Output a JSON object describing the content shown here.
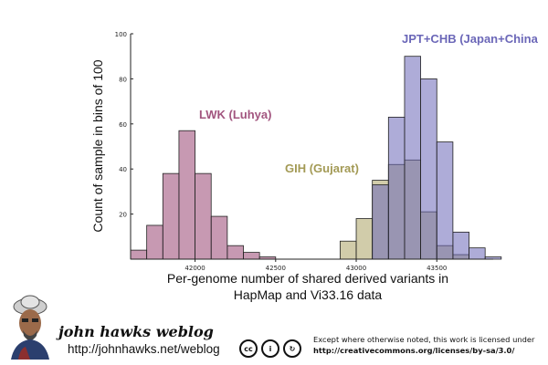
{
  "chart_data": {
    "type": "histogram",
    "xlabel_line1": "Per-genome number of shared derived variants in",
    "xlabel_line2": "HapMap and Vi33.16 data",
    "ylabel": "Count of sample in bins of 100",
    "xlim": [
      41600,
      43850
    ],
    "ylim": [
      0,
      100
    ],
    "bin_width": 100,
    "x_ticks": [
      42000,
      42500,
      43000,
      43500
    ],
    "y_ticks": [
      0,
      20,
      40,
      60,
      80,
      100
    ],
    "series": [
      {
        "name": "LWK (Luhya)",
        "color": "#a2557f",
        "opacity": 0.6,
        "bins": [
          {
            "start": 41600,
            "count": 4
          },
          {
            "start": 41700,
            "count": 15
          },
          {
            "start": 41800,
            "count": 38
          },
          {
            "start": 41900,
            "count": 57
          },
          {
            "start": 42000,
            "count": 38
          },
          {
            "start": 42100,
            "count": 19
          },
          {
            "start": 42200,
            "count": 6
          },
          {
            "start": 42300,
            "count": 3
          },
          {
            "start": 42400,
            "count": 1
          }
        ]
      },
      {
        "name": "GIH (Gujarat)",
        "color": "#a39a55",
        "opacity": 0.5,
        "bins": [
          {
            "start": 42900,
            "count": 8
          },
          {
            "start": 43000,
            "count": 18
          },
          {
            "start": 43100,
            "count": 35
          },
          {
            "start": 43200,
            "count": 42
          },
          {
            "start": 43300,
            "count": 44
          },
          {
            "start": 43400,
            "count": 21
          },
          {
            "start": 43500,
            "count": 6
          },
          {
            "start": 43600,
            "count": 2
          }
        ]
      },
      {
        "name": "JPT+CHB (Japan+China",
        "color": "#6b67b8",
        "opacity": 0.55,
        "bins": [
          {
            "start": 43100,
            "count": 33
          },
          {
            "start": 43200,
            "count": 63
          },
          {
            "start": 43300,
            "count": 90
          },
          {
            "start": 43400,
            "count": 80
          },
          {
            "start": 43500,
            "count": 52
          },
          {
            "start": 43600,
            "count": 12
          },
          {
            "start": 43700,
            "count": 5
          },
          {
            "start": 43800,
            "count": 1
          }
        ]
      }
    ]
  },
  "footer": {
    "blog_title": "john hawks weblog",
    "blog_url": "http://johnhawks.net/weblog",
    "cc_icons": [
      "cc-icon",
      "by-icon",
      "sa-icon"
    ],
    "cc_symbols": [
      "cc",
      "i",
      "↻"
    ],
    "license_line1": "Except where otherwise noted, this work is licensed under",
    "license_url": "http://creativecommons.org/licenses/by-sa/3.0/"
  }
}
